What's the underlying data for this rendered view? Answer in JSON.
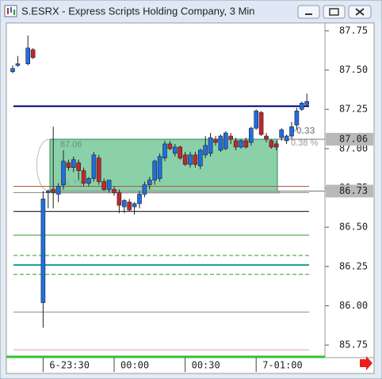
{
  "chart_data": {
    "type": "candlestick",
    "title": "S.ESRX - Express Scripts Holding Company, 3 Min",
    "categories": [
      null,
      null,
      null,
      null,
      null,
      null,
      "6-23:30",
      null,
      null,
      null,
      null,
      null,
      null,
      null,
      null,
      null,
      null,
      null,
      null,
      null,
      "00:00",
      null,
      null,
      null,
      null,
      null,
      null,
      null,
      null,
      null,
      null,
      null,
      null,
      null,
      "00:30",
      null,
      null,
      null,
      null,
      null,
      null,
      null,
      null,
      null,
      null,
      null,
      null,
      null,
      "7-01:00",
      null,
      null,
      null,
      null,
      null,
      null,
      null,
      null,
      null,
      null
    ],
    "open": [
      87.49,
      87.53,
      null,
      87.54,
      87.63,
      null,
      86.02,
      86.72,
      86.74,
      86.71,
      86.77,
      86.91,
      86.88,
      86.91,
      86.86,
      86.78,
      86.81,
      86.94,
      86.79,
      86.74,
      86.74,
      86.72,
      86.63,
      86.66,
      86.63,
      86.65,
      86.71,
      86.77,
      86.8,
      86.81,
      86.94,
      87.03,
      86.97,
      87.01,
      86.96,
      86.9,
      86.96,
      86.89,
      86.96,
      86.97,
      87.06,
      86.99,
      87.0,
      87.08,
      87.05,
      87.01,
      87.05,
      87.04,
      87.13,
      87.23,
      87.08,
      87.05,
      87.03,
      87.07,
      87.05,
      87.08,
      87.15,
      87.25,
      87.28
    ],
    "high": [
      87.53,
      87.59,
      null,
      87.72,
      87.64,
      null,
      86.73,
      86.74,
      87.14,
      86.78,
      86.99,
      86.93,
      86.95,
      86.93,
      86.88,
      86.82,
      86.98,
      86.96,
      86.81,
      86.8,
      86.76,
      86.74,
      86.68,
      86.68,
      86.66,
      86.73,
      86.79,
      86.82,
      86.93,
      86.97,
      87.05,
      87.05,
      87.03,
      87.02,
      86.98,
      86.98,
      86.98,
      87.0,
      87.08,
      87.1,
      87.08,
      87.09,
      87.11,
      87.1,
      87.07,
      87.06,
      87.07,
      87.14,
      87.25,
      87.24,
      87.1,
      87.06,
      87.05,
      87.13,
      87.09,
      87.17,
      87.26,
      87.3,
      87.35
    ],
    "low": [
      87.48,
      87.52,
      null,
      87.53,
      87.57,
      null,
      85.86,
      86.62,
      86.62,
      86.66,
      86.74,
      86.86,
      86.85,
      86.8,
      86.76,
      86.76,
      86.79,
      86.77,
      86.73,
      86.72,
      86.7,
      86.59,
      86.59,
      86.6,
      86.58,
      86.62,
      86.69,
      86.74,
      86.77,
      86.79,
      86.92,
      86.99,
      86.95,
      86.93,
      86.89,
      86.88,
      86.88,
      86.87,
      86.94,
      86.95,
      87.02,
      86.98,
      86.99,
      87.03,
      86.99,
      87.0,
      87.0,
      87.02,
      87.12,
      87.08,
      87.04,
      87.0,
      86.99,
      87.05,
      87.03,
      87.06,
      87.12,
      87.24,
      87.27
    ],
    "close": [
      87.51,
      87.54,
      null,
      87.64,
      87.58,
      null,
      86.68,
      86.73,
      86.72,
      86.76,
      86.92,
      86.88,
      86.93,
      86.86,
      86.78,
      86.81,
      86.96,
      86.79,
      86.74,
      86.8,
      86.72,
      86.64,
      86.67,
      86.61,
      86.65,
      86.71,
      86.77,
      86.8,
      86.92,
      86.95,
      87.03,
      87.0,
      87.01,
      86.94,
      86.9,
      86.96,
      86.9,
      86.99,
      87.02,
      87.07,
      87.04,
      87.08,
      87.1,
      87.06,
      87.01,
      87.05,
      87.01,
      87.13,
      87.24,
      87.09,
      87.06,
      87.01,
      87.01,
      87.12,
      87.08,
      87.14,
      87.24,
      87.29,
      87.3
    ],
    "up_color": "#1f6fe0",
    "down_color": "#c4262b",
    "ylim": [
      85.67,
      87.8
    ],
    "yticks": [
      85.75,
      {
        "value": 86,
        "label": "86.00"
      },
      86.25,
      {
        "value": 86.5,
        "label": "86.50"
      },
      86.75,
      {
        "value": 87,
        "label": "87.00"
      },
      87.25,
      {
        "value": 87.5,
        "label": "87.50"
      },
      87.75
    ],
    "levels": [
      {
        "value": 87.27,
        "color": "#00008b",
        "dash": false,
        "width": 2
      },
      {
        "value": 86.76,
        "color": "#b05a3c",
        "dash": false,
        "width": 1
      },
      {
        "value": 86.72,
        "color": "#8c8c8c",
        "dash": false,
        "width": 1
      },
      {
        "value": 86.6,
        "color": "#000000",
        "dash": false,
        "width": 1
      },
      {
        "value": 86.45,
        "color": "#2e9b2e",
        "dash": false,
        "width": 1
      },
      {
        "value": 86.32,
        "color": "#2e9b2e",
        "dash": true,
        "width": 1
      },
      {
        "value": 86.26,
        "color": "#149c9c",
        "dash": false,
        "width": 2
      },
      {
        "value": 86.2,
        "color": "#2e9b2e",
        "dash": true,
        "width": 1
      },
      {
        "value": 85.96,
        "color": "#8c8c8c",
        "dash": false,
        "width": 1
      },
      {
        "value": 85.72,
        "color": "#e89aa8",
        "dash": false,
        "width": 1
      }
    ],
    "range_box": {
      "top": 87.06,
      "bottom": 86.73,
      "color": "#3cb371",
      "change": "+0.33",
      "change_pct": "0.38 %"
    }
  }
}
